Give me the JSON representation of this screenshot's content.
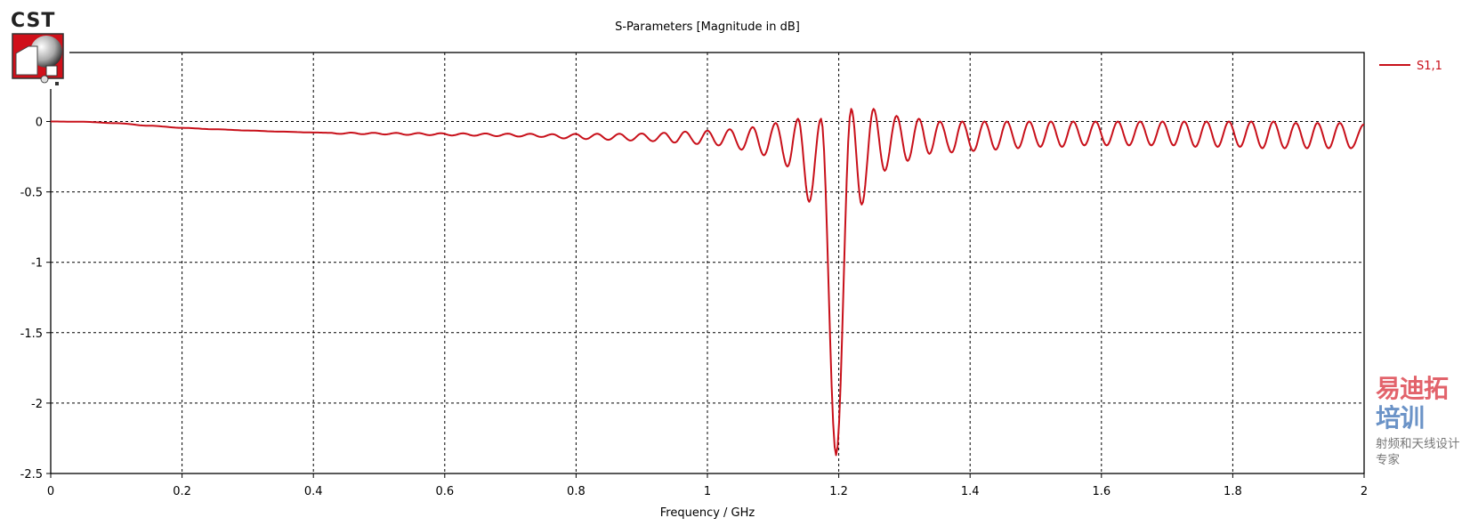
{
  "logo": {
    "text": "CST"
  },
  "watermark": {
    "brand_red": "易迪拓",
    "brand_blue": "培训",
    "tagline": "射频和天线设计专家"
  },
  "chart_data": {
    "type": "line",
    "title": "S-Parameters [Magnitude in dB]",
    "xlabel": "Frequency / GHz",
    "ylabel": "",
    "xlim": [
      0,
      2
    ],
    "ylim": [
      -2.5,
      0.49
    ],
    "grid": true,
    "x_ticks": [
      0,
      0.2,
      0.4,
      0.6,
      0.8,
      1,
      1.2,
      1.4,
      1.6,
      1.8,
      2
    ],
    "x_tick_labels": [
      "0",
      "0.2",
      "0.4",
      "0.6",
      "0.8",
      "1",
      "1.2",
      "1.4",
      "1.6",
      "1.8",
      "2"
    ],
    "y_ticks": [
      0,
      -0.5,
      -1,
      -1.5,
      -2,
      -2.5
    ],
    "y_tick_labels": [
      "0",
      "-0.5",
      "-1",
      "-1.5",
      "-2",
      "-2.5"
    ],
    "legend_placement": "right-top",
    "series": [
      {
        "name": "S1,1",
        "color": "#c8101a",
        "points": [
          [
            0,
            0
          ],
          [
            0.05,
            -0.002
          ],
          [
            0.1,
            -0.012
          ],
          [
            0.15,
            -0.03
          ],
          [
            0.2,
            -0.045
          ],
          [
            0.25,
            -0.055
          ],
          [
            0.3,
            -0.064
          ],
          [
            0.35,
            -0.072
          ],
          [
            0.4,
            -0.078
          ],
          [
            0.424,
            -0.08
          ],
          [
            0.441,
            -0.088
          ],
          [
            0.458,
            -0.079
          ],
          [
            0.475,
            -0.09
          ],
          [
            0.492,
            -0.08
          ],
          [
            0.509,
            -0.092
          ],
          [
            0.526,
            -0.081
          ],
          [
            0.543,
            -0.095
          ],
          [
            0.56,
            -0.082
          ],
          [
            0.577,
            -0.097
          ],
          [
            0.594,
            -0.083
          ],
          [
            0.611,
            -0.099
          ],
          [
            0.628,
            -0.084
          ],
          [
            0.645,
            -0.101
          ],
          [
            0.662,
            -0.085
          ],
          [
            0.679,
            -0.104
          ],
          [
            0.696,
            -0.086
          ],
          [
            0.713,
            -0.107
          ],
          [
            0.73,
            -0.087
          ],
          [
            0.747,
            -0.11
          ],
          [
            0.764,
            -0.09
          ],
          [
            0.781,
            -0.12
          ],
          [
            0.799,
            -0.088
          ],
          [
            0.815,
            -0.125
          ],
          [
            0.832,
            -0.087
          ],
          [
            0.849,
            -0.13
          ],
          [
            0.866,
            -0.087
          ],
          [
            0.883,
            -0.135
          ],
          [
            0.9,
            -0.085
          ],
          [
            0.917,
            -0.14
          ],
          [
            0.934,
            -0.08
          ],
          [
            0.95,
            -0.15
          ],
          [
            0.966,
            -0.072
          ],
          [
            0.984,
            -0.16
          ],
          [
            1.0,
            -0.065
          ],
          [
            1.017,
            -0.17
          ],
          [
            1.034,
            -0.055
          ],
          [
            1.052,
            -0.2
          ],
          [
            1.069,
            -0.04
          ],
          [
            1.086,
            -0.24
          ],
          [
            1.104,
            -0.01
          ],
          [
            1.122,
            -0.32
          ],
          [
            1.138,
            0.02
          ],
          [
            1.155,
            -0.57
          ],
          [
            1.173,
            0.02
          ],
          [
            1.196,
            -2.37
          ],
          [
            1.219,
            0.09
          ],
          [
            1.235,
            -0.59
          ],
          [
            1.253,
            0.09
          ],
          [
            1.27,
            -0.35
          ],
          [
            1.288,
            0.04
          ],
          [
            1.305,
            -0.28
          ],
          [
            1.322,
            0.02
          ],
          [
            1.338,
            -0.23
          ],
          [
            1.354,
            0.0
          ],
          [
            1.372,
            -0.22
          ],
          [
            1.388,
            0.0
          ],
          [
            1.405,
            -0.21
          ],
          [
            1.422,
            0.0
          ],
          [
            1.439,
            -0.2
          ],
          [
            1.456,
            0.0
          ],
          [
            1.473,
            -0.19
          ],
          [
            1.49,
            0.0
          ],
          [
            1.507,
            -0.18
          ],
          [
            1.523,
            0.0
          ],
          [
            1.54,
            -0.18
          ],
          [
            1.557,
            0.0
          ],
          [
            1.574,
            -0.17
          ],
          [
            1.591,
            0.0
          ],
          [
            1.608,
            -0.17
          ],
          [
            1.625,
            0.0
          ],
          [
            1.642,
            -0.17
          ],
          [
            1.659,
            0.0
          ],
          [
            1.676,
            -0.17
          ],
          [
            1.693,
            0.0
          ],
          [
            1.71,
            -0.17
          ],
          [
            1.726,
            0.0
          ],
          [
            1.743,
            -0.18
          ],
          [
            1.76,
            0.0
          ],
          [
            1.777,
            -0.18
          ],
          [
            1.794,
            0.0
          ],
          [
            1.811,
            -0.18
          ],
          [
            1.828,
            0.0
          ],
          [
            1.845,
            -0.19
          ],
          [
            1.862,
            0.0
          ],
          [
            1.879,
            -0.19
          ],
          [
            1.896,
            -0.01
          ],
          [
            1.913,
            -0.19
          ],
          [
            1.929,
            -0.01
          ],
          [
            1.946,
            -0.19
          ],
          [
            1.963,
            -0.01
          ],
          [
            1.98,
            -0.19
          ],
          [
            2.0,
            -0.02
          ]
        ]
      }
    ]
  }
}
